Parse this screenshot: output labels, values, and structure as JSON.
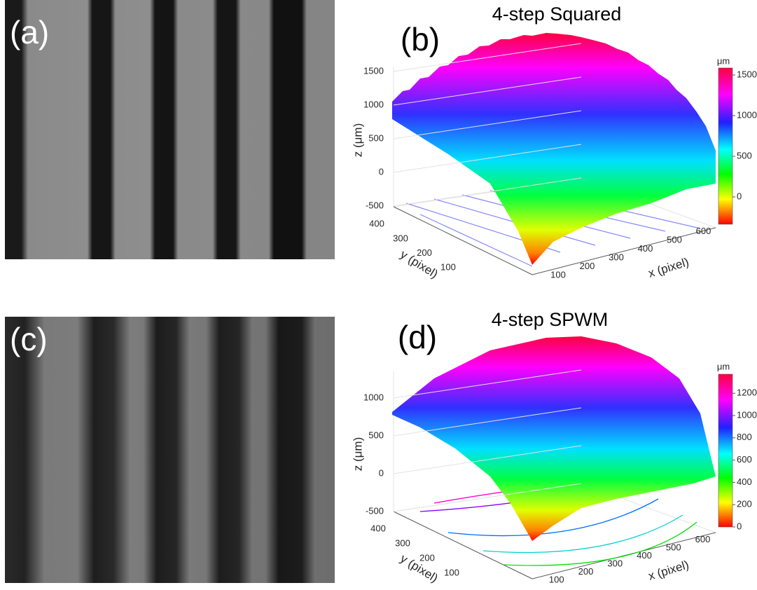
{
  "panel_a": {
    "label": "(a)"
  },
  "panel_b": {
    "label": "(b)",
    "title": "4-step Squared",
    "z_axis": {
      "label": "z (μm)",
      "ticks": [
        1500,
        1000,
        500,
        0,
        -500
      ]
    },
    "y_axis": {
      "label": "y (pixel)",
      "ticks": [
        400,
        300,
        200,
        100
      ]
    },
    "x_axis": {
      "label": "x (pixel)",
      "ticks": [
        100,
        200,
        300,
        400,
        500,
        600
      ]
    },
    "colorbar": {
      "unit": "μm",
      "ticks": [
        1500,
        1000,
        500,
        0
      ]
    }
  },
  "panel_c": {
    "label": "(c)"
  },
  "panel_d": {
    "label": "(d)",
    "title": "4-step SPWM",
    "z_axis": {
      "label": "z (μm)",
      "ticks": [
        1000,
        500,
        0,
        -500
      ]
    },
    "y_axis": {
      "label": "y (pixel)",
      "ticks": [
        400,
        300,
        200,
        100
      ]
    },
    "x_axis": {
      "label": "x (pixel)",
      "ticks": [
        100,
        200,
        300,
        400,
        500,
        600
      ]
    },
    "colorbar": {
      "unit": "μm",
      "ticks": [
        1200,
        1000,
        800,
        600,
        400,
        200,
        0
      ]
    }
  }
}
